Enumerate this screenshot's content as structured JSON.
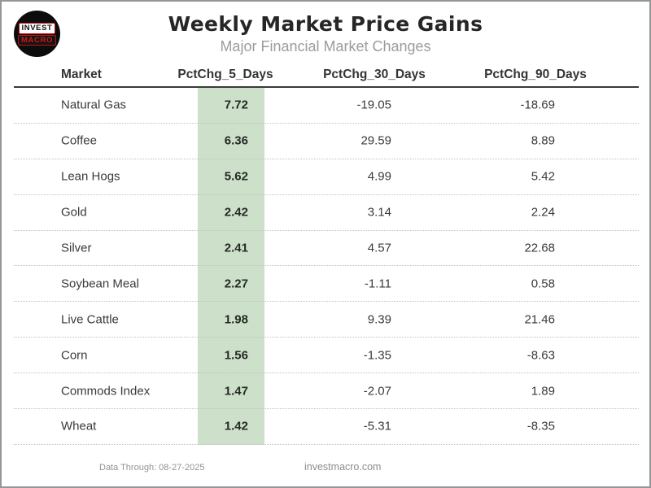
{
  "logo": {
    "line1": "INVEST",
    "line2": "MACRO"
  },
  "chart_data": {
    "type": "table",
    "title": "Weekly Market Price Gains",
    "subtitle": "Major Financial Market Changes",
    "columns": [
      "Market",
      "PctChg_5_Days",
      "PctChg_30_Days",
      "PctChg_90_Days"
    ],
    "highlighted_column": "PctChg_5_Days",
    "rows": [
      {
        "market": "Natural Gas",
        "pctchg_5": "7.72",
        "pctchg_30": "-19.05",
        "pctchg_90": "-18.69"
      },
      {
        "market": "Coffee",
        "pctchg_5": "6.36",
        "pctchg_30": "29.59",
        "pctchg_90": "8.89"
      },
      {
        "market": "Lean Hogs",
        "pctchg_5": "5.62",
        "pctchg_30": "4.99",
        "pctchg_90": "5.42"
      },
      {
        "market": "Gold",
        "pctchg_5": "2.42",
        "pctchg_30": "3.14",
        "pctchg_90": "2.24"
      },
      {
        "market": "Silver",
        "pctchg_5": "2.41",
        "pctchg_30": "4.57",
        "pctchg_90": "22.68"
      },
      {
        "market": "Soybean Meal",
        "pctchg_5": "2.27",
        "pctchg_30": "-1.11",
        "pctchg_90": "0.58"
      },
      {
        "market": "Live Cattle",
        "pctchg_5": "1.98",
        "pctchg_30": "9.39",
        "pctchg_90": "21.46"
      },
      {
        "market": "Corn",
        "pctchg_5": "1.56",
        "pctchg_30": "-1.35",
        "pctchg_90": "-8.63"
      },
      {
        "market": "Commods Index",
        "pctchg_5": "1.47",
        "pctchg_30": "-2.07",
        "pctchg_90": "1.89"
      },
      {
        "market": "Wheat",
        "pctchg_5": "1.42",
        "pctchg_30": "-5.31",
        "pctchg_90": "-8.35"
      }
    ]
  },
  "footer": {
    "data_through": "Data Through: 08-27-2025",
    "website": "investmacro.com"
  },
  "colors": {
    "highlight_green": "#cde1ca",
    "accent_red": "#c41212",
    "title_dark": "#262626",
    "subtitle_gray": "#9c9c9c"
  }
}
